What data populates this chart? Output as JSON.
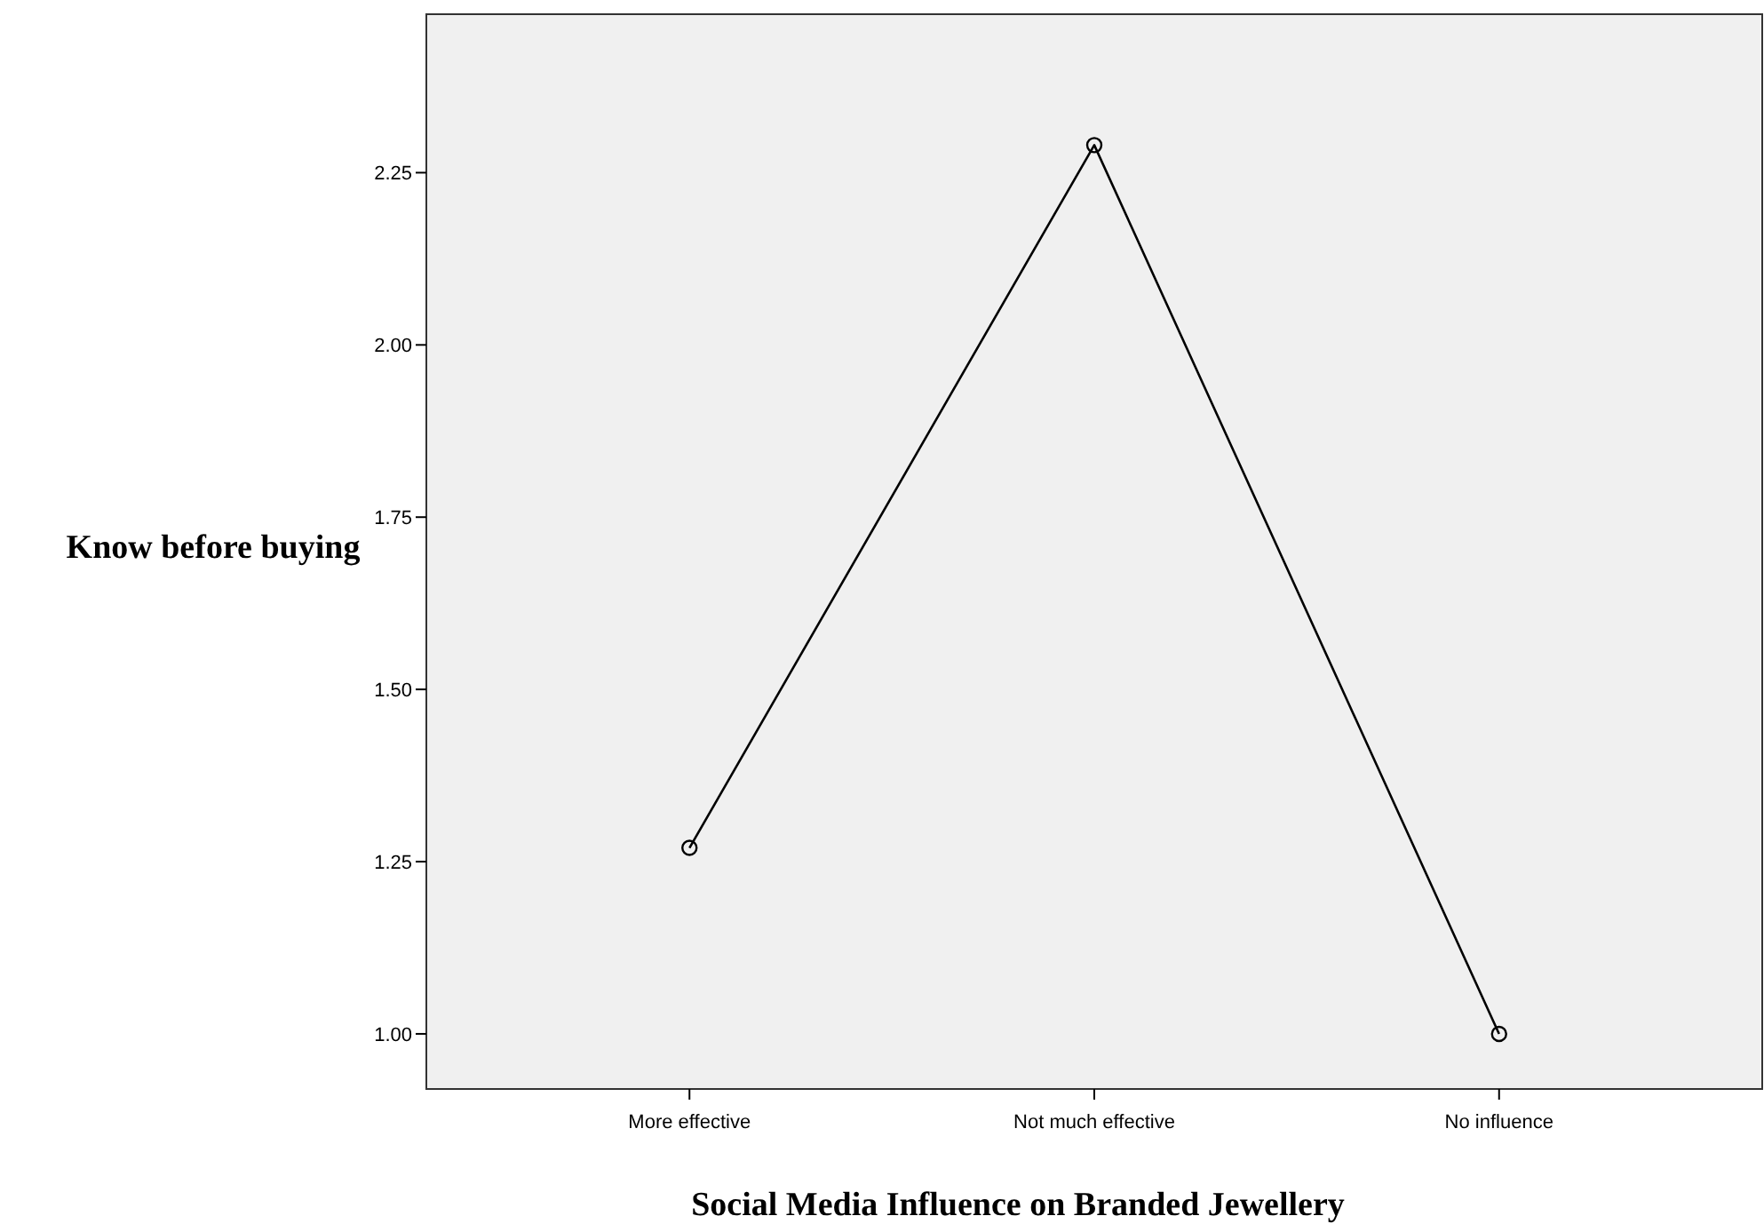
{
  "chart_data": {
    "type": "line",
    "xlabel": "Social Media Influence on Branded Jewellery",
    "ylabel": "Know before buying",
    "categories": [
      "More effective",
      "Not much effective",
      "No influence"
    ],
    "series": [
      {
        "color": "#000000",
        "values": [
          1.27,
          2.29,
          1.0
        ]
      }
    ],
    "ylim": [
      0.92,
      2.48
    ],
    "yticks": [
      {
        "value": 1,
        "label": "1.00"
      },
      {
        "value": 1.25,
        "label": "1.25"
      },
      {
        "value": 1.5,
        "label": "1.50"
      },
      {
        "value": 1.75,
        "label": "1.75"
      },
      {
        "value": 2,
        "label": "2.00"
      },
      {
        "value": 2.25,
        "label": "2.25"
      }
    ],
    "grid": false,
    "marker": "circle",
    "line_style": "solid"
  }
}
